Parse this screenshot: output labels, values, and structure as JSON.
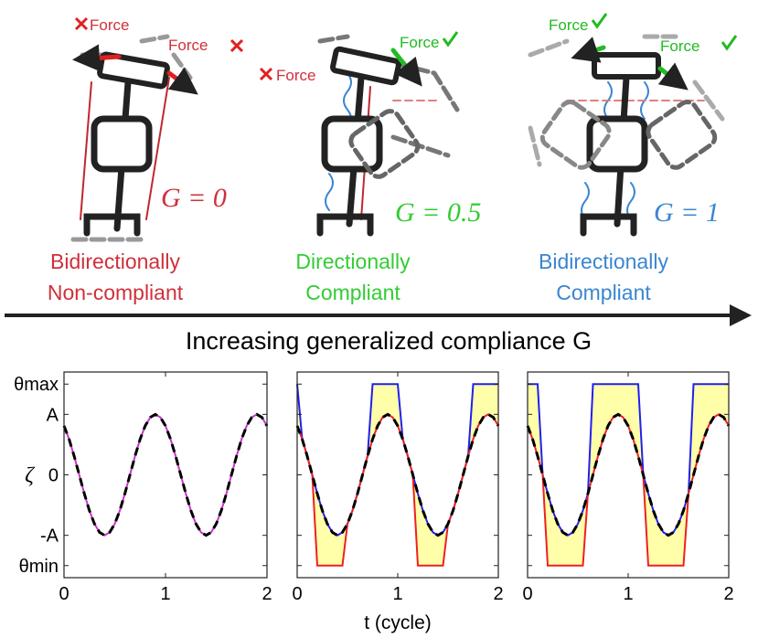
{
  "illustrations": [
    {
      "force_labels": [
        "Force",
        "Force"
      ],
      "g_label": "G = 0",
      "caption": [
        "Bidirectionally",
        "Non-compliant"
      ],
      "color": "#d0303a"
    },
    {
      "force_labels": [
        "Force",
        "Force"
      ],
      "g_label": "G = 0.5",
      "caption": [
        "Directionally",
        "Compliant"
      ],
      "color": "#33cc33"
    },
    {
      "force_labels": [
        "Force",
        "Force"
      ],
      "g_label": "G = 1",
      "caption": [
        "Bidirectionally",
        "Compliant"
      ],
      "color": "#3a86d0"
    }
  ],
  "arrow_label": "Increasing generalized compliance G",
  "chart_data": [
    {
      "type": "line",
      "ylabel": "ζ",
      "x": [
        0,
        0.05,
        0.1,
        0.15,
        0.2,
        0.25,
        0.3,
        0.35,
        0.4,
        0.45,
        0.5,
        0.55,
        0.6,
        0.65,
        0.7,
        0.75,
        0.8,
        0.85,
        0.9,
        0.95,
        1,
        1.05,
        1.1,
        1.15,
        1.2,
        1.25,
        1.3,
        1.35,
        1.4,
        1.45,
        1.5,
        1.55,
        1.6,
        1.65,
        1.7,
        1.75,
        1.8,
        1.85,
        1.9,
        1.95,
        2
      ],
      "xlim": [
        0,
        2
      ],
      "xticks": [
        0,
        1,
        2
      ],
      "ylim": [
        -1.7,
        1.7
      ],
      "yticks": [
        {
          "value": -1.5,
          "label": "θmin"
        },
        {
          "value": -1,
          "label": "-A"
        },
        0,
        {
          "value": 1,
          "label": "A"
        },
        {
          "value": 1.5,
          "label": "θmax"
        }
      ],
      "series": [
        {
          "color": "#cc33cc",
          "dashed": false,
          "values": [
            0.81,
            0.59,
            0.31,
            0,
            -0.31,
            -0.59,
            -0.81,
            -0.95,
            -1,
            -0.95,
            -0.81,
            -0.59,
            -0.31,
            0,
            0.31,
            0.59,
            0.81,
            0.95,
            1,
            0.95,
            0.81,
            0.59,
            0.31,
            0,
            -0.31,
            -0.59,
            -0.81,
            -0.95,
            -1,
            -0.95,
            -0.81,
            -0.59,
            -0.31,
            0,
            0.31,
            0.59,
            0.81,
            0.95,
            1,
            0.95,
            0.81
          ]
        },
        {
          "color": "#000000",
          "dashed": true,
          "values": [
            0.81,
            0.59,
            0.31,
            0,
            -0.31,
            -0.59,
            -0.81,
            -0.95,
            -1,
            -0.95,
            -0.81,
            -0.59,
            -0.31,
            0,
            0.31,
            0.59,
            0.81,
            0.95,
            1,
            0.95,
            0.81,
            0.59,
            0.31,
            0,
            -0.31,
            -0.59,
            -0.81,
            -0.95,
            -1,
            -0.95,
            -0.81,
            -0.59,
            -0.31,
            0,
            0.31,
            0.59,
            0.81,
            0.95,
            1,
            0.95,
            0.81
          ]
        }
      ]
    },
    {
      "type": "line",
      "xlabel": "t (cycle)",
      "fill_color": "#ffffaa",
      "x": [
        0,
        0.05,
        0.1,
        0.15,
        0.2,
        0.25,
        0.3,
        0.35,
        0.4,
        0.45,
        0.5,
        0.55,
        0.6,
        0.65,
        0.7,
        0.75,
        0.8,
        0.85,
        0.9,
        0.95,
        1,
        1.05,
        1.1,
        1.15,
        1.2,
        1.25,
        1.3,
        1.35,
        1.4,
        1.45,
        1.5,
        1.55,
        1.6,
        1.65,
        1.7,
        1.75,
        1.8,
        1.85,
        1.9,
        1.95,
        2
      ],
      "xlim": [
        0,
        2
      ],
      "xticks": [
        0,
        1,
        2
      ],
      "ylim": [
        -1.7,
        1.7
      ],
      "yticks": [
        -1.5,
        -1,
        0,
        1,
        1.5
      ],
      "series": [
        {
          "color": "#2020ee",
          "dashed": false,
          "values": [
            1.5,
            0.59,
            0.31,
            0,
            -0.31,
            -0.59,
            -0.81,
            -0.95,
            -1,
            -0.95,
            -0.81,
            -0.59,
            -0.31,
            0,
            0.31,
            1.5,
            1.5,
            1.5,
            1.5,
            1.5,
            1.5,
            0.59,
            0.31,
            0,
            -0.31,
            -0.59,
            -0.81,
            -0.95,
            -1,
            -0.95,
            -0.81,
            -0.59,
            -0.31,
            0,
            0.31,
            1.5,
            1.5,
            1.5,
            1.5,
            1.5,
            1.5
          ]
        },
        {
          "color": "#ee2020",
          "dashed": false,
          "values": [
            0.81,
            0.59,
            0.31,
            0,
            -1.5,
            -1.5,
            -1.5,
            -1.5,
            -1.5,
            -1.5,
            -0.81,
            -0.59,
            -0.31,
            0,
            0.31,
            0.59,
            0.81,
            0.95,
            1,
            0.95,
            0.81,
            0.59,
            0.31,
            0,
            -1.5,
            -1.5,
            -1.5,
            -1.5,
            -1.5,
            -1.5,
            -0.81,
            -0.59,
            -0.31,
            0,
            0.31,
            0.59,
            0.81,
            0.95,
            1,
            0.95,
            0.81
          ]
        },
        {
          "color": "#000000",
          "dashed": true,
          "values": [
            0.81,
            0.59,
            0.31,
            0,
            -0.31,
            -0.59,
            -0.81,
            -0.95,
            -1,
            -0.95,
            -0.81,
            -0.59,
            -0.31,
            0,
            0.31,
            0.59,
            0.81,
            0.95,
            1,
            0.95,
            0.81,
            0.59,
            0.31,
            0,
            -0.31,
            -0.59,
            -0.81,
            -0.95,
            -1,
            -0.95,
            -0.81,
            -0.59,
            -0.31,
            0,
            0.31,
            0.59,
            0.81,
            0.95,
            1,
            0.95,
            0.81
          ]
        }
      ]
    },
    {
      "type": "line",
      "fill_color": "#ffffaa",
      "x": [
        0,
        0.05,
        0.1,
        0.15,
        0.2,
        0.25,
        0.3,
        0.35,
        0.4,
        0.45,
        0.5,
        0.55,
        0.6,
        0.65,
        0.7,
        0.75,
        0.8,
        0.85,
        0.9,
        0.95,
        1,
        1.05,
        1.1,
        1.15,
        1.2,
        1.25,
        1.3,
        1.35,
        1.4,
        1.45,
        1.5,
        1.55,
        1.6,
        1.65,
        1.7,
        1.75,
        1.8,
        1.85,
        1.9,
        1.95,
        2
      ],
      "xlim": [
        0,
        2
      ],
      "xticks": [
        0,
        1,
        2
      ],
      "ylim": [
        -1.7,
        1.7
      ],
      "yticks": [
        -1.5,
        -1,
        0,
        1,
        1.5
      ],
      "series": [
        {
          "color": "#2020ee",
          "dashed": false,
          "values": [
            1.5,
            1.5,
            1.5,
            0,
            -0.31,
            -0.59,
            -0.81,
            -0.95,
            -1,
            -0.95,
            -0.81,
            -0.59,
            -0.31,
            1.5,
            1.5,
            1.5,
            1.5,
            1.5,
            1.5,
            1.5,
            1.5,
            1.5,
            1.5,
            0,
            -0.31,
            -0.59,
            -0.81,
            -0.95,
            -1,
            -0.95,
            -0.81,
            -0.59,
            -0.31,
            1.5,
            1.5,
            1.5,
            1.5,
            1.5,
            1.5,
            1.5,
            1.5
          ]
        },
        {
          "color": "#ee2020",
          "dashed": false,
          "values": [
            0.81,
            0.59,
            0.31,
            0,
            -1.5,
            -1.5,
            -1.5,
            -1.5,
            -1.5,
            -1.5,
            -1.5,
            -1.5,
            -0.31,
            0,
            0.31,
            0.59,
            0.81,
            0.95,
            1,
            0.95,
            0.81,
            0.59,
            0.31,
            0,
            -1.5,
            -1.5,
            -1.5,
            -1.5,
            -1.5,
            -1.5,
            -1.5,
            -1.5,
            -0.31,
            0,
            0.31,
            0.59,
            0.81,
            0.95,
            1,
            0.95,
            0.81
          ]
        },
        {
          "color": "#000000",
          "dashed": true,
          "values": [
            0.81,
            0.59,
            0.31,
            0,
            -0.31,
            -0.59,
            -0.81,
            -0.95,
            -1,
            -0.95,
            -0.81,
            -0.59,
            -0.31,
            0,
            0.31,
            0.59,
            0.81,
            0.95,
            1,
            0.95,
            0.81,
            0.59,
            0.31,
            0,
            -0.31,
            -0.59,
            -0.81,
            -0.95,
            -1,
            -0.95,
            -0.81,
            -0.59,
            -0.31,
            0,
            0.31,
            0.59,
            0.81,
            0.95,
            1,
            0.95,
            0.81
          ]
        }
      ]
    }
  ]
}
